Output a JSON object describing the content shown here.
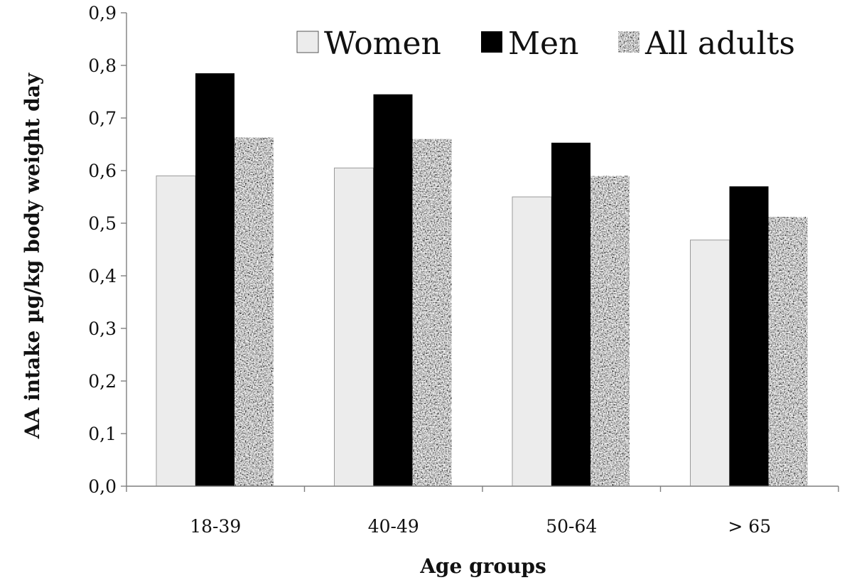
{
  "chart_data": {
    "type": "bar",
    "title": "",
    "xlabel": "Age groups",
    "ylabel": "AA intake µg/kg body weight day",
    "categories": [
      "18-39",
      "40-49",
      "50-64",
      "> 65"
    ],
    "series": [
      {
        "name": "Women",
        "values": [
          0.59,
          0.605,
          0.55,
          0.468
        ],
        "color": "#ececec",
        "pattern": "solid-light"
      },
      {
        "name": "Men",
        "values": [
          0.785,
          0.745,
          0.653,
          0.57
        ],
        "color": "#000000",
        "pattern": "solid-dark"
      },
      {
        "name": "All adults",
        "values": [
          0.663,
          0.66,
          0.59,
          0.512
        ],
        "color": "#8a8a8a",
        "pattern": "speckled-gray"
      }
    ],
    "ylim": [
      0.0,
      0.9
    ],
    "yticks": [
      "0,0",
      "0,1",
      "0,2",
      "0,3",
      "0,4",
      "0,5",
      "0,6",
      "0,7",
      "0,8",
      "0,9"
    ],
    "grid": false,
    "legend_position": "top-right"
  }
}
